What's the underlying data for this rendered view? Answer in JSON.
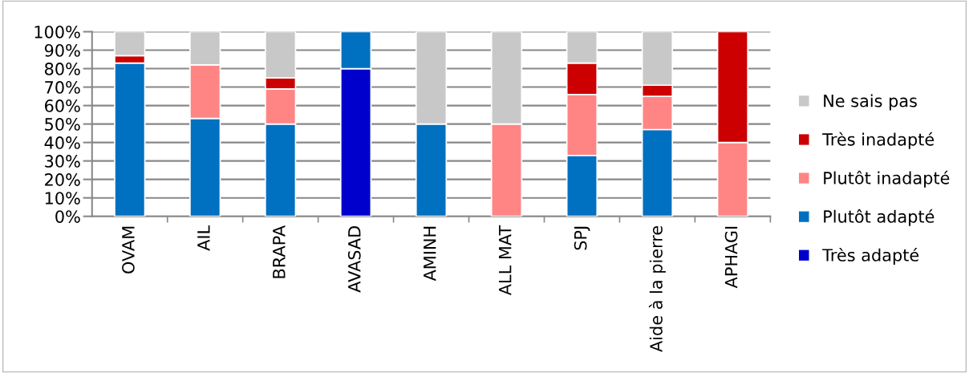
{
  "chart_data": {
    "type": "bar",
    "stacked": true,
    "categories": [
      "OVAM",
      "AIL",
      "BRAPA",
      "AVASAD",
      "AMINH",
      "ALL MAT",
      "SPJ",
      "Aide à la pierre",
      "APHAGI"
    ],
    "series": [
      {
        "name": "Très adapté",
        "color": "#0000cc",
        "values": [
          0,
          0,
          0,
          80,
          0,
          0,
          0,
          0,
          0
        ]
      },
      {
        "name": "Plutôt adapté",
        "color": "#0070c0",
        "values": [
          83,
          53,
          50,
          20,
          50,
          0,
          33,
          47,
          0
        ]
      },
      {
        "name": "Plutôt inadapté",
        "color": "#ff8585",
        "values": [
          0,
          29,
          19,
          0,
          0,
          50,
          33,
          18,
          40
        ]
      },
      {
        "name": "Très inadapté",
        "color": "#cc0000",
        "values": [
          4,
          0,
          6,
          0,
          0,
          0,
          17,
          6,
          60
        ]
      },
      {
        "name": "Ne sais pas",
        "color": "#c8c8c8",
        "values": [
          13,
          18,
          25,
          0,
          50,
          50,
          17,
          29,
          0
        ]
      }
    ],
    "ylim": [
      0,
      100
    ],
    "yticks": [
      {
        "value": 0,
        "label": "0%"
      },
      {
        "value": 10,
        "label": "10%"
      },
      {
        "value": 20,
        "label": "20%"
      },
      {
        "value": 30,
        "label": "30%"
      },
      {
        "value": 40,
        "label": "40%"
      },
      {
        "value": 50,
        "label": "50%"
      },
      {
        "value": 60,
        "label": "60%"
      },
      {
        "value": 70,
        "label": "70%"
      },
      {
        "value": 80,
        "label": "80%"
      },
      {
        "value": 90,
        "label": "90%"
      },
      {
        "value": 100,
        "label": "100%"
      }
    ],
    "grid": "y",
    "legend": "right"
  }
}
